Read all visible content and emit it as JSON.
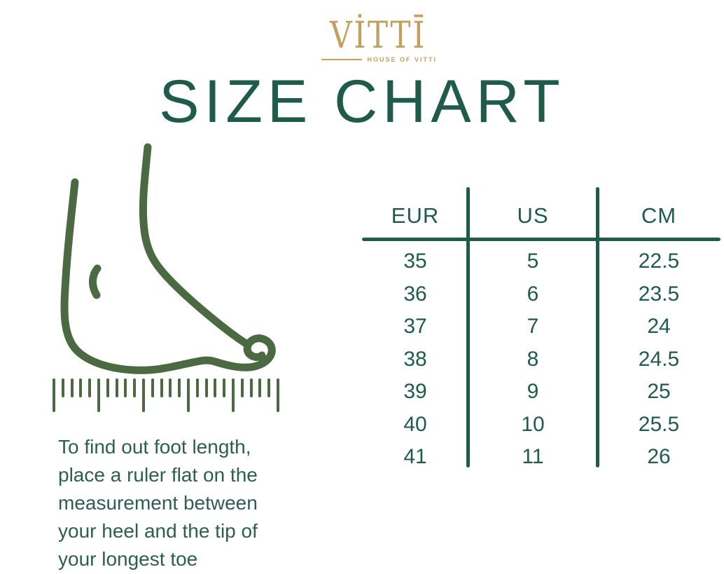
{
  "brand": {
    "logo_text": "VİTTĪ",
    "tagline": "HOUSE OF VITTI"
  },
  "title": "SIZE CHART",
  "instructions": "To find out foot length, place a ruler flat on the measurement between your heel and the tip of your longest toe",
  "size_table": {
    "columns": [
      "EUR",
      "US",
      "CM"
    ],
    "rows": [
      [
        "35",
        "5",
        "22.5"
      ],
      [
        "36",
        "6",
        "23.5"
      ],
      [
        "37",
        "7",
        "24"
      ],
      [
        "38",
        "8",
        "24.5"
      ],
      [
        "39",
        "9",
        "25"
      ],
      [
        "40",
        "10",
        "25.5"
      ],
      [
        "41",
        "11",
        "26"
      ]
    ]
  },
  "chart_data": {
    "type": "table",
    "title": "SIZE CHART",
    "columns": [
      "EUR",
      "US",
      "CM"
    ],
    "rows": [
      [
        35,
        5,
        22.5
      ],
      [
        36,
        6,
        23.5
      ],
      [
        37,
        7,
        24
      ],
      [
        38,
        8,
        24.5
      ],
      [
        39,
        9,
        25
      ],
      [
        40,
        10,
        25.5
      ],
      [
        41,
        11,
        26
      ]
    ]
  },
  "icons": {
    "foot": "foot-outline-icon",
    "ruler": "ruler-icon"
  },
  "ruler": {
    "tick_count": 26,
    "long_every": 5
  },
  "colors": {
    "gold": "#c3a05e",
    "deep_green": "#1f5b4a",
    "text_green": "#2d5f4f",
    "olive_green": "#4b6a42"
  }
}
